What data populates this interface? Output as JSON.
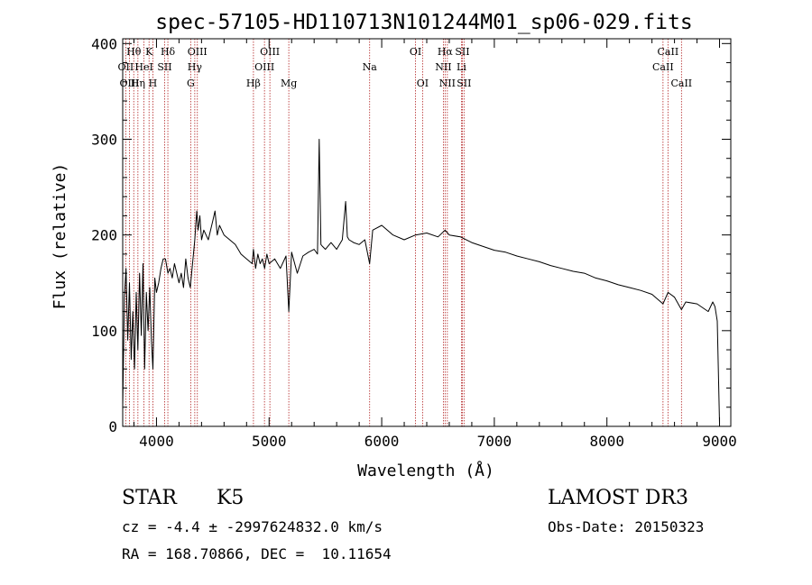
{
  "chart_data": {
    "type": "line",
    "title": "spec-57105-HD110713N101244M01_sp06-029.fits",
    "xlabel": "Wavelength (Å)",
    "ylabel": "Flux (relative)",
    "xlim": [
      3700,
      9100
    ],
    "ylim": [
      0,
      405
    ],
    "xticks": [
      4000,
      5000,
      6000,
      7000,
      8000,
      9000
    ],
    "yticks": [
      0,
      100,
      200,
      300,
      400
    ],
    "grid": false,
    "series": [
      {
        "name": "flux",
        "x": [
          3700,
          3715,
          3730,
          3745,
          3760,
          3775,
          3790,
          3805,
          3820,
          3835,
          3850,
          3865,
          3880,
          3895,
          3910,
          3925,
          3940,
          3955,
          3968,
          3985,
          4000,
          4020,
          4040,
          4060,
          4080,
          4101,
          4120,
          4140,
          4160,
          4180,
          4200,
          4220,
          4240,
          4260,
          4280,
          4300,
          4320,
          4340,
          4358,
          4370,
          4385,
          4400,
          4420,
          4440,
          4460,
          4480,
          4500,
          4520,
          4540,
          4560,
          4600,
          4650,
          4700,
          4750,
          4800,
          4850,
          4861,
          4880,
          4900,
          4920,
          4940,
          4960,
          4980,
          5000,
          5050,
          5100,
          5150,
          5175,
          5200,
          5250,
          5300,
          5350,
          5400,
          5430,
          5445,
          5460,
          5475,
          5500,
          5550,
          5600,
          5650,
          5680,
          5695,
          5710,
          5750,
          5800,
          5850,
          5893,
          5920,
          6000,
          6100,
          6200,
          6300,
          6400,
          6500,
          6563,
          6600,
          6700,
          6800,
          6900,
          7000,
          7100,
          7200,
          7300,
          7400,
          7500,
          7600,
          7700,
          7800,
          7900,
          8000,
          8100,
          8200,
          8300,
          8400,
          8498,
          8542,
          8600,
          8662,
          8700,
          8800,
          8900,
          8940,
          8960,
          8980,
          9000
        ],
        "values": [
          20,
          135,
          165,
          90,
          150,
          70,
          120,
          60,
          140,
          80,
          160,
          95,
          170,
          60,
          140,
          100,
          145,
          90,
          60,
          155,
          140,
          150,
          165,
          175,
          175,
          160,
          165,
          155,
          170,
          160,
          150,
          160,
          145,
          175,
          155,
          145,
          170,
          195,
          225,
          205,
          220,
          195,
          205,
          200,
          195,
          205,
          215,
          225,
          200,
          210,
          200,
          195,
          190,
          180,
          175,
          170,
          185,
          165,
          180,
          170,
          175,
          165,
          180,
          170,
          175,
          165,
          178,
          120,
          182,
          160,
          178,
          182,
          185,
          180,
          300,
          190,
          188,
          185,
          192,
          185,
          195,
          235,
          198,
          195,
          192,
          190,
          195,
          170,
          205,
          210,
          200,
          195,
          200,
          202,
          198,
          205,
          200,
          198,
          192,
          188,
          184,
          182,
          178,
          175,
          172,
          168,
          165,
          162,
          160,
          155,
          152,
          148,
          145,
          142,
          138,
          128,
          140,
          135,
          122,
          130,
          128,
          120,
          130,
          125,
          110,
          3
        ]
      }
    ],
    "line_labels": [
      {
        "text": "Hθ",
        "x": 3798,
        "row": 1
      },
      {
        "text": "OII",
        "x": 3727,
        "row": 2
      },
      {
        "text": "OIII",
        "x": 3760,
        "row": 3
      },
      {
        "text": "K",
        "x": 3934,
        "row": 1
      },
      {
        "text": "HeI",
        "x": 3889,
        "row": 2
      },
      {
        "text": "Hη",
        "x": 3835,
        "row": 3
      },
      {
        "text": "Hδ",
        "x": 4101,
        "row": 1
      },
      {
        "text": "SII",
        "x": 4072,
        "row": 2
      },
      {
        "text": "H",
        "x": 3968,
        "row": 3
      },
      {
        "text": "OIII",
        "x": 4363,
        "row": 1
      },
      {
        "text": "Hγ",
        "x": 4340,
        "row": 2
      },
      {
        "text": "G",
        "x": 4304,
        "row": 3
      },
      {
        "text": "OIII",
        "x": 5007,
        "row": 1
      },
      {
        "text": "OIII",
        "x": 4959,
        "row": 2
      },
      {
        "text": "Hβ",
        "x": 4861,
        "row": 3
      },
      {
        "text": "Mg",
        "x": 5175,
        "row": 3
      },
      {
        "text": "Na",
        "x": 5893,
        "row": 2
      },
      {
        "text": "OI",
        "x": 6300,
        "row": 1
      },
      {
        "text": "OI",
        "x": 6363,
        "row": 3
      },
      {
        "text": "Hα",
        "x": 6563,
        "row": 1
      },
      {
        "text": "SII",
        "x": 6716,
        "row": 1
      },
      {
        "text": "NII",
        "x": 6548,
        "row": 2
      },
      {
        "text": "Li",
        "x": 6708,
        "row": 2
      },
      {
        "text": "NII",
        "x": 6583,
        "row": 3
      },
      {
        "text": "SII",
        "x": 6731,
        "row": 3
      },
      {
        "text": "CaII",
        "x": 8542,
        "row": 1
      },
      {
        "text": "CaII",
        "x": 8498,
        "row": 2
      },
      {
        "text": "CaII",
        "x": 8662,
        "row": 3
      }
    ],
    "marker_lines": [
      3727,
      3760,
      3798,
      3835,
      3889,
      3934,
      3968,
      4072,
      4101,
      4304,
      4340,
      4363,
      4861,
      4959,
      5007,
      5175,
      5893,
      6300,
      6363,
      6548,
      6563,
      6583,
      6708,
      6716,
      6731,
      8498,
      8542,
      8662
    ],
    "colors": {
      "line": "#000000",
      "marker": "#b22222",
      "axis": "#000000"
    }
  },
  "info": {
    "object_class": "STAR",
    "subclass": "K5",
    "survey": "LAMOST DR3",
    "cz": "cz = -4.4 ± -2997624832.0 km/s",
    "obs_date": "Obs-Date: 20150323",
    "coords": "RA = 168.70866, DEC =  10.11654"
  }
}
